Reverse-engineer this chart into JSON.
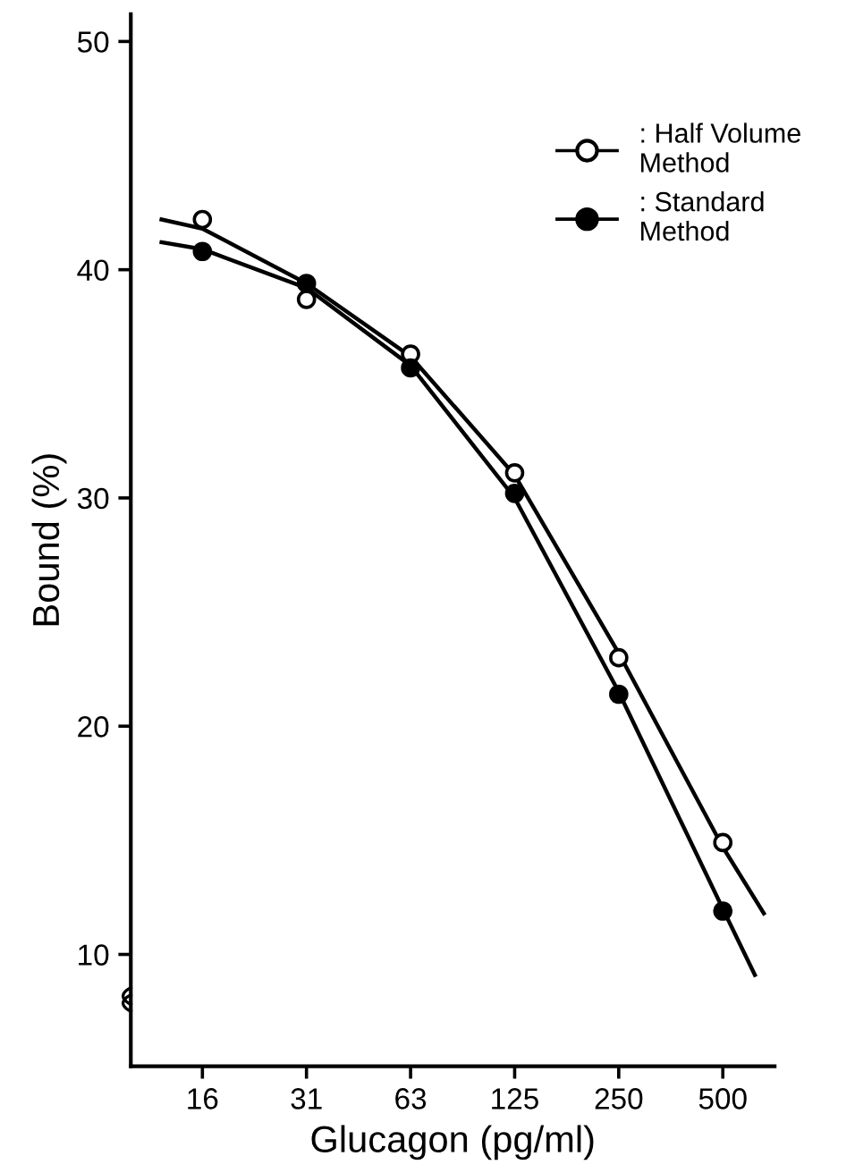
{
  "chart_data": {
    "type": "scatter",
    "xlabel": "Glucagon (pg/ml)",
    "ylabel": "Bound (%)",
    "log": "x",
    "xlim": [
      9.7,
      706
    ],
    "xticks": [
      {
        "value": 15.625,
        "label": "16"
      },
      {
        "value": 31.25,
        "label": "31"
      },
      {
        "value": 62.5,
        "label": "63"
      },
      125,
      250,
      500
    ],
    "ylim": [
      5.1,
      51.2
    ],
    "yticks": [
      10,
      20,
      30,
      40,
      50
    ],
    "grid": false,
    "legend": "top right",
    "marker": "circle",
    "series": [
      {
        "type": "line",
        "color": "#000000",
        "marker": "none",
        "x": [
          11.9,
          15.625,
          31.25,
          62.5,
          125,
          250,
          500,
          657
        ],
        "values": [
          42.2,
          41.8,
          39.4,
          36.2,
          31.0,
          23.2,
          14.7,
          11.8
        ]
      },
      {
        "type": "line",
        "color": "#000000",
        "marker": "none",
        "x": [
          11.9,
          15.625,
          31.25,
          62.5,
          125,
          250,
          500,
          619
        ],
        "values": [
          41.2,
          40.9,
          39.2,
          35.8,
          30.0,
          21.5,
          12.0,
          9.1
        ]
      },
      {
        "name": ": Half Volume\nMethod",
        "color": "#ffffff",
        "x": [
          15.625,
          31.25,
          62.5,
          125,
          250,
          500
        ],
        "values": [
          42.2,
          38.7,
          36.3,
          31.1,
          23.0,
          14.9
        ]
      },
      {
        "name": ": Standard\nMethod",
        "color": "#000000",
        "x": [
          15.625,
          31.25,
          62.5,
          125,
          250,
          500
        ],
        "values": [
          40.8,
          39.4,
          35.7,
          30.2,
          21.4,
          11.9
        ]
      }
    ]
  }
}
